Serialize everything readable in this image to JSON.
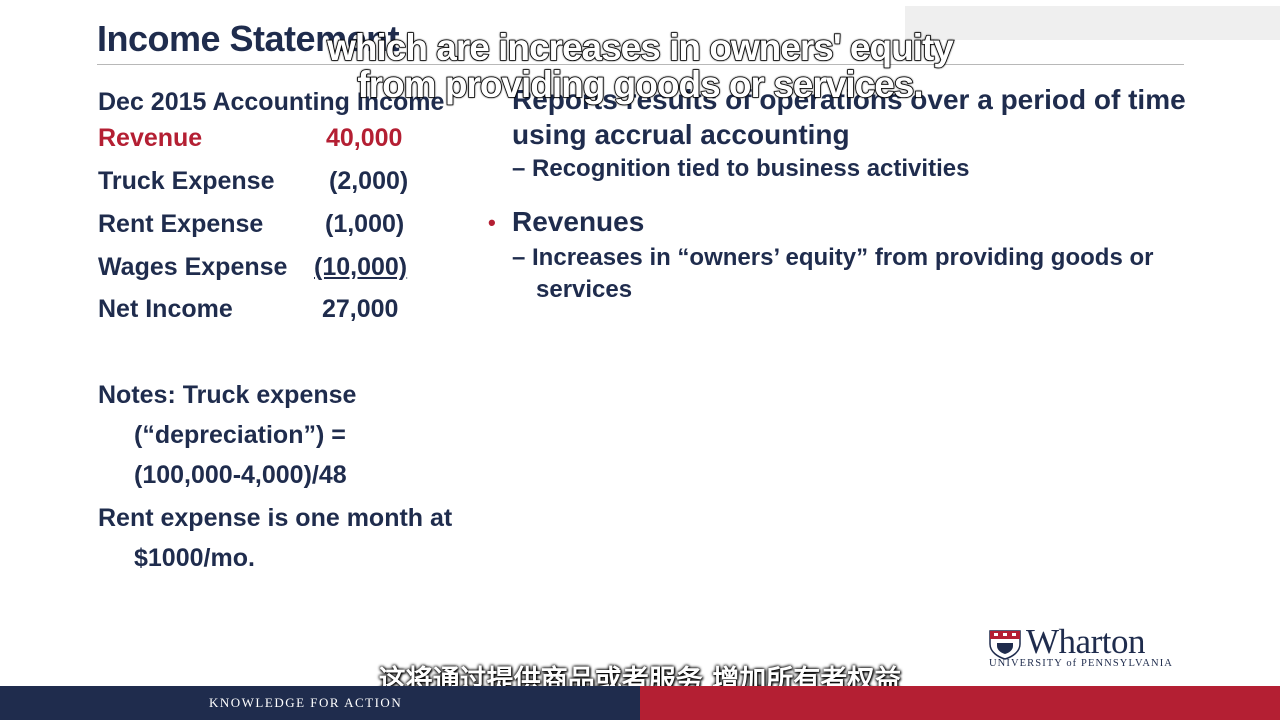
{
  "slide": {
    "title": "Income Statement",
    "left_panel": {
      "heading": "Dec 2015 Accounting Income",
      "rows": [
        {
          "label": "Revenue",
          "amount": "40,000"
        },
        {
          "label": "Truck Expense",
          "amount": "(2,000)"
        },
        {
          "label": "Rent Expense",
          "amount": "(1,000)"
        },
        {
          "label": "Wages Expense",
          "amount": "(10,000)"
        },
        {
          "label": "Net Income",
          "amount": "27,000"
        }
      ],
      "notes": [
        "Notes: Truck expense",
        "(“depreciation”) =",
        "(100,000-4,000)/48",
        "Rent expense is one month at",
        "$1000/mo."
      ]
    },
    "right_panel": {
      "bullet1_line1": "Reports results of operations over a period of time",
      "bullet1_line2": "using accrual accounting",
      "bullet1_sub": "– Recognition tied to business activities",
      "bullet2_marker": "•",
      "bullet2": "Revenues",
      "bullet2_sub_line1": "– Increases in “owners’ equity” from providing goods or",
      "bullet2_sub_line2": "services"
    }
  },
  "captions": {
    "english_line1": "which are increases in owners' equity",
    "english_line2": "from providing goods or services.",
    "chinese": "这将通过提供商品或者服务 增加所有者权益"
  },
  "branding": {
    "logo_word": "Wharton",
    "logo_sub": "UNIVERSITY of PENNSYLVANIA",
    "footer_tagline": "KNOWLEDGE FOR ACTION"
  },
  "colors": {
    "navy": "#1f2c4d",
    "red": "#b41f33",
    "rule": "#b8b8b8"
  }
}
